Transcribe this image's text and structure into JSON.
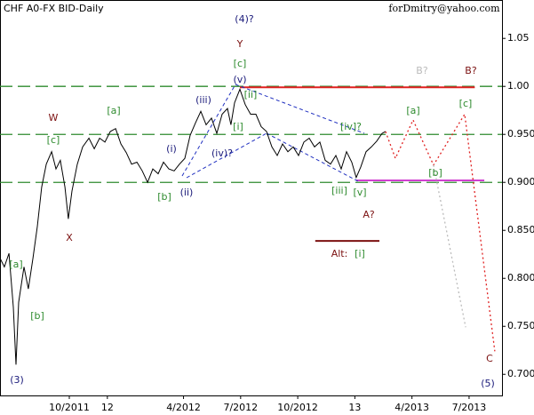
{
  "chart_data": {
    "type": "line",
    "title": "CHF A0-FX BID-Daily",
    "subtitle": "forDmitry@yahoo.com",
    "xlim": [
      -0.64,
      25.73
    ],
    "ylim": [
      0.678,
      1.09
    ],
    "xticks": [
      {
        "value": 3,
        "label": "10/2011"
      },
      {
        "value": 5,
        "label": "12"
      },
      {
        "value": 9,
        "label": "4/2012"
      },
      {
        "value": 12,
        "label": "7/2012"
      },
      {
        "value": 15,
        "label": "10/2012"
      },
      {
        "value": 18,
        "label": "13"
      },
      {
        "value": 21,
        "label": "4/2013"
      },
      {
        "value": 24,
        "label": "7/2013"
      }
    ],
    "yticks": [
      1.05,
      {
        "value": 1,
        "label": "1.00"
      },
      {
        "value": 0.95,
        "label": "0.950"
      },
      {
        "value": 0.9,
        "label": "0.900"
      },
      {
        "value": 0.85,
        "label": "0.850"
      },
      {
        "value": 0.8,
        "label": "0.800"
      },
      {
        "value": 0.75,
        "label": "0.750"
      },
      {
        "value": 0.7,
        "label": "0.700"
      }
    ],
    "series": [
      {
        "color": "#000000",
        "style": "solid",
        "x": [
          -0.64,
          -0.41,
          -0.17,
          0.06,
          0.2,
          0.34,
          0.62,
          0.85,
          1.09,
          1.32,
          1.55,
          1.79,
          2.07,
          2.3,
          2.53,
          2.77,
          2.95,
          3.14,
          3.42,
          3.7,
          4.03,
          4.31,
          4.59,
          4.87,
          5.15,
          5.43,
          5.71,
          5.99,
          6.27,
          6.55,
          6.83,
          7.11,
          7.39,
          7.67,
          7.95,
          8.23,
          8.51,
          8.79,
          9.07,
          9.35,
          9.63,
          9.91,
          10.19,
          10.47,
          10.75,
          11.03,
          11.31,
          11.49,
          11.68,
          11.96,
          12.24,
          12.52,
          12.8,
          13.08,
          13.36,
          13.64,
          13.92,
          14.2,
          14.48,
          14.76,
          15.04,
          15.32,
          15.6,
          15.88,
          16.16,
          16.44,
          16.72,
          17,
          17.28,
          17.56,
          17.84,
          18.07,
          18.31,
          18.59,
          18.87,
          19.15,
          19.43,
          19.61
        ],
        "values": [
          0.821,
          0.812,
          0.826,
          0.77,
          0.71,
          0.775,
          0.812,
          0.789,
          0.821,
          0.854,
          0.895,
          0.919,
          0.932,
          0.914,
          0.923,
          0.895,
          0.862,
          0.891,
          0.919,
          0.937,
          0.946,
          0.935,
          0.946,
          0.942,
          0.953,
          0.956,
          0.94,
          0.931,
          0.919,
          0.921,
          0.912,
          0.9,
          0.914,
          0.909,
          0.921,
          0.914,
          0.912,
          0.919,
          0.925,
          0.949,
          0.962,
          0.974,
          0.96,
          0.967,
          0.951,
          0.971,
          0.977,
          0.96,
          0.983,
          0.997,
          0.981,
          0.971,
          0.971,
          0.958,
          0.953,
          0.937,
          0.928,
          0.94,
          0.932,
          0.937,
          0.928,
          0.942,
          0.946,
          0.937,
          0.942,
          0.923,
          0.919,
          0.928,
          0.914,
          0.932,
          0.921,
          0.905,
          0.916,
          0.932,
          0.937,
          0.943,
          0.951,
          0.953
        ]
      },
      {
        "color": "#e02020",
        "style": "dotted",
        "x": [
          19.61,
          20.13,
          21.06,
          22.13,
          23.77,
          25.35
        ],
        "values": [
          0.953,
          0.925,
          0.965,
          0.918,
          0.971,
          0.724
        ]
      },
      {
        "color": "#bbbbbb",
        "style": "dotted",
        "x": [
          22.13,
          23.82
        ],
        "values": [
          0.918,
          0.749
        ]
      }
    ],
    "levels": [
      1,
      0.95,
      0.9
    ],
    "level_color": "#2e8b2e",
    "segments": [
      {
        "y": 0.999,
        "x": [
          11.96,
          24.3
        ],
        "color": "#e02020"
      },
      {
        "y": 0.902,
        "x": [
          18.07,
          24.8
        ],
        "color": "#d040d0"
      },
      {
        "y": 0.839,
        "x": [
          15.92,
          19.29
        ],
        "color": "#7b1010"
      }
    ],
    "annotations": [
      {
        "text": "(4)?",
        "color": "#1a1a7a"
      },
      {
        "text": "Y",
        "color": "#7b1010"
      },
      {
        "text": "[c]",
        "color": "#2e8b2e"
      },
      {
        "text": "(v)",
        "color": "#1a1a7a"
      },
      {
        "text": "[ii]",
        "color": "#2e8b2e"
      },
      {
        "text": "(iii)",
        "color": "#1a1a7a"
      },
      {
        "text": "[a]",
        "color": "#2e8b2e"
      },
      {
        "text": "W",
        "color": "#7b1010"
      },
      {
        "text": "[c]",
        "color": "#2e8b2e"
      },
      {
        "text": "[i]",
        "color": "#2e8b2e"
      },
      {
        "text": "(i)",
        "color": "#1a1a7a"
      },
      {
        "text": "(iv)?",
        "color": "#1a1a7a"
      },
      {
        "text": "[iv]?",
        "color": "#2e8b2e"
      },
      {
        "text": "[b]",
        "color": "#2e8b2e"
      },
      {
        "text": "(ii)",
        "color": "#1a1a7a"
      },
      {
        "text": "[iii]",
        "color": "#2e8b2e"
      },
      {
        "text": "[v]",
        "color": "#2e8b2e"
      },
      {
        "text": "X",
        "color": "#7b1010"
      },
      {
        "text": "A?",
        "color": "#7b1010"
      },
      {
        "text": "Alt:",
        "color": "#7b1010"
      },
      {
        "text": "[i]",
        "color": "#2e8b2e"
      },
      {
        "text": "B?",
        "color": "#bbbbbb"
      },
      {
        "text": "B?",
        "color": "#7b1010"
      },
      {
        "text": "[a]",
        "color": "#2e8b2e"
      },
      {
        "text": "[c]",
        "color": "#2e8b2e"
      },
      {
        "text": "[b]",
        "color": "#2e8b2e"
      },
      {
        "text": "C",
        "color": "#7b1010"
      },
      {
        "text": "(5)",
        "color": "#1a1a7a"
      },
      {
        "text": "(3)",
        "color": "#1a1a7a"
      },
      {
        "text": "[a]",
        "color": "#2e8b2e"
      },
      {
        "text": "[b]",
        "color": "#2e8b2e"
      }
    ]
  }
}
